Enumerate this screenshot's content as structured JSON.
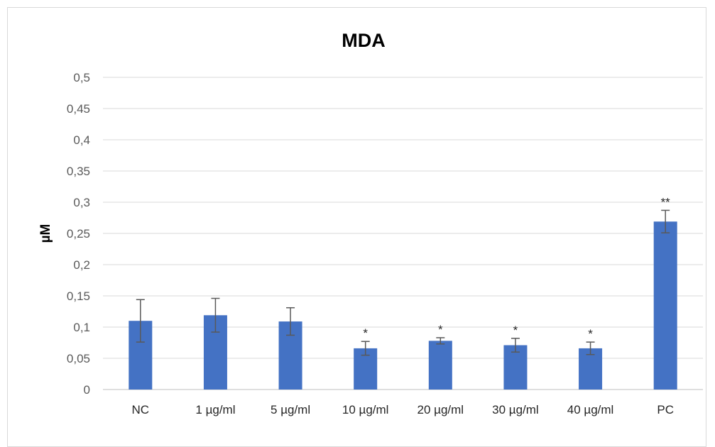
{
  "chart_data": {
    "type": "bar",
    "title": "MDA",
    "xlabel": "",
    "ylabel": "µM",
    "ylim": [
      0,
      0.5
    ],
    "yticks": [
      "0",
      "0,05",
      "0,1",
      "0,15",
      "0,2",
      "0,25",
      "0,3",
      "0,35",
      "0,4",
      "0,45",
      "0,5"
    ],
    "categories": [
      "NC",
      "1 µg/ml",
      "5 µg/ml",
      "10 µg/ml",
      "20 µg/ml",
      "30 µg/ml",
      "40 µg/ml",
      "PC"
    ],
    "values": [
      0.11,
      0.119,
      0.109,
      0.066,
      0.078,
      0.071,
      0.066,
      0.269
    ],
    "errors": [
      0.034,
      0.027,
      0.022,
      0.011,
      0.005,
      0.011,
      0.01,
      0.018
    ],
    "significance": [
      "",
      "",
      "",
      "*",
      "*",
      "*",
      "*",
      "**"
    ],
    "grid": true,
    "bar_color": "#4472c4"
  }
}
